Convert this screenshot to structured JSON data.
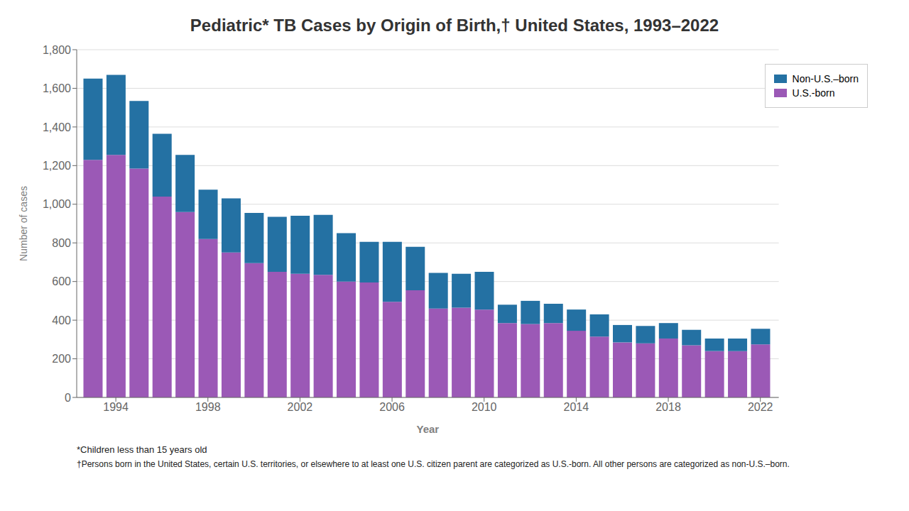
{
  "chart_data": {
    "type": "bar",
    "title": "Pediatric* TB Cases by Origin of Birth,† United States, 1993–2022",
    "xlabel": "Year",
    "ylabel": "Number of cases",
    "x": [
      1993,
      1994,
      1995,
      1996,
      1997,
      1998,
      1999,
      2000,
      2001,
      2002,
      2003,
      2004,
      2005,
      2006,
      2007,
      2008,
      2009,
      2010,
      2011,
      2012,
      2013,
      2014,
      2015,
      2016,
      2017,
      2018,
      2019,
      2020,
      2021,
      2022
    ],
    "series": [
      {
        "name": "U.S.-born",
        "color": "#9B59B6",
        "values": [
          1230,
          1255,
          1185,
          1040,
          960,
          820,
          750,
          695,
          650,
          640,
          635,
          600,
          595,
          495,
          555,
          460,
          465,
          455,
          385,
          380,
          385,
          345,
          315,
          285,
          280,
          305,
          270,
          240,
          240,
          275
        ]
      },
      {
        "name": "Non-U.S.–born",
        "color": "#2471A3",
        "values": [
          420,
          415,
          350,
          325,
          295,
          255,
          280,
          260,
          285,
          300,
          310,
          250,
          210,
          310,
          225,
          185,
          175,
          195,
          95,
          120,
          100,
          110,
          115,
          90,
          90,
          80,
          80,
          65,
          65,
          80
        ]
      }
    ],
    "stacked": true,
    "xlim": [
      1992.3,
      2022.8
    ],
    "xticks": [
      1994,
      1998,
      2002,
      2006,
      2010,
      2014,
      2018,
      2022
    ],
    "ylim": [
      0,
      1800
    ],
    "yticks": [
      0,
      200,
      400,
      600,
      800,
      {
        "value": 1000,
        "label": "1,000"
      },
      {
        "value": 1200,
        "label": "1,200"
      },
      {
        "value": 1400,
        "label": "1,400"
      },
      {
        "value": 1600,
        "label": "1,600"
      },
      {
        "value": 1800,
        "label": "1,800"
      }
    ],
    "grid": true,
    "legend": "upper right",
    "annotations": [
      "*Children less than 15 years old",
      "†Persons born in the United States, certain U.S. territories, or elsewhere to at least one U.S. citizen parent are categorized as U.S.-born. All other persons are categorized as non-U.S.–born."
    ]
  }
}
